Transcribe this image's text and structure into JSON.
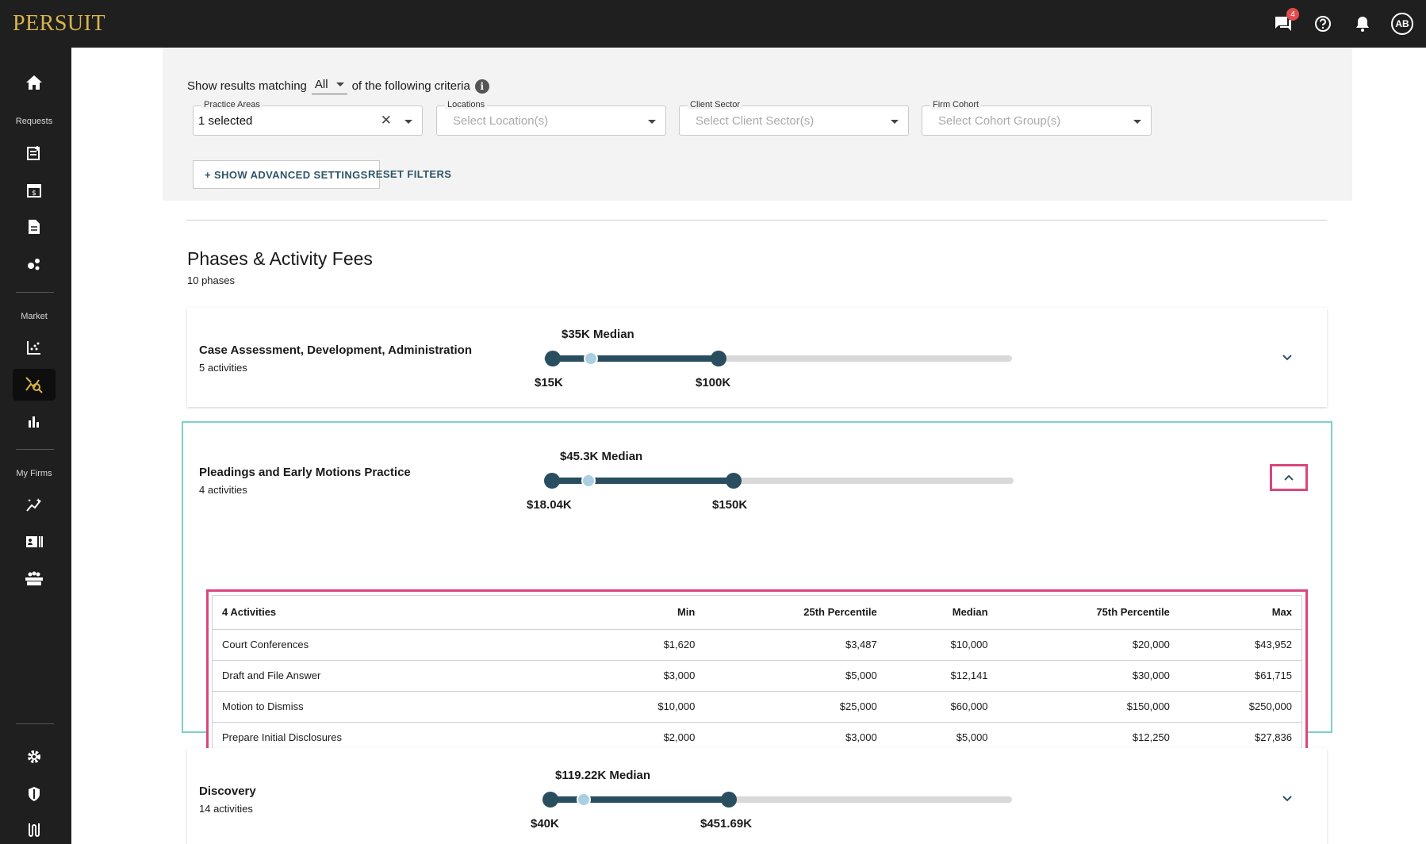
{
  "app": {
    "logo": "PERSUIT"
  },
  "topbar": {
    "messages_badge": "4",
    "avatar_initials": "AB"
  },
  "sidebar": {
    "requests_label": "Requests",
    "market_label": "Market",
    "my_firms_label": "My Firms"
  },
  "filters": {
    "criteria_prefix": "Show results matching",
    "criteria_value": "All",
    "criteria_suffix": "of the following criteria",
    "practice_areas": {
      "label": "Practice Areas",
      "value": "1 selected"
    },
    "locations": {
      "label": "Locations",
      "placeholder": "Select Location(s)"
    },
    "client_sector": {
      "label": "Client Sector",
      "placeholder": "Select Client Sector(s)"
    },
    "firm_cohort": {
      "label": "Firm Cohort",
      "placeholder": "Select Cohort Group(s)"
    },
    "advanced_button": "+ SHOW ADVANCED SETTINGS",
    "reset_button": "RESET FILTERS"
  },
  "section": {
    "title": "Phases & Activity Fees",
    "subtitle": "10 phases"
  },
  "phases": [
    {
      "name": "Case Assessment, Development, Administration",
      "activities": "5 activities",
      "median_label": "$35K Median",
      "min_label": "$15K",
      "max_label": "$100K",
      "expanded": false
    },
    {
      "name": "Pleadings and Early Motions Practice",
      "activities": "4 activities",
      "median_label": "$45.3K Median",
      "min_label": "$18.04K",
      "max_label": "$150K",
      "expanded": true
    },
    {
      "name": "Discovery",
      "activities": "14 activities",
      "median_label": "$119.22K Median",
      "min_label": "$40K",
      "max_label": "$451.69K",
      "expanded": false
    }
  ],
  "activities_table": {
    "columns": [
      "4 Activities",
      "Min",
      "25th Percentile",
      "Median",
      "75th Percentile",
      "Max"
    ],
    "rows": [
      [
        "Court Conferences",
        "$1,620",
        "$3,487",
        "$10,000",
        "$20,000",
        "$43,952"
      ],
      [
        "Draft and File Answer",
        "$3,000",
        "$5,000",
        "$12,141",
        "$30,000",
        "$61,715"
      ],
      [
        "Motion to Dismiss",
        "$10,000",
        "$25,000",
        "$60,000",
        "$150,000",
        "$250,000"
      ],
      [
        "Prepare Initial Disclosures",
        "$2,000",
        "$3,000",
        "$5,000",
        "$12,250",
        "$27,836"
      ]
    ]
  },
  "icons": {
    "home": "home-icon",
    "chat": "chat-icon",
    "help": "help-icon",
    "bell": "bell-icon"
  }
}
